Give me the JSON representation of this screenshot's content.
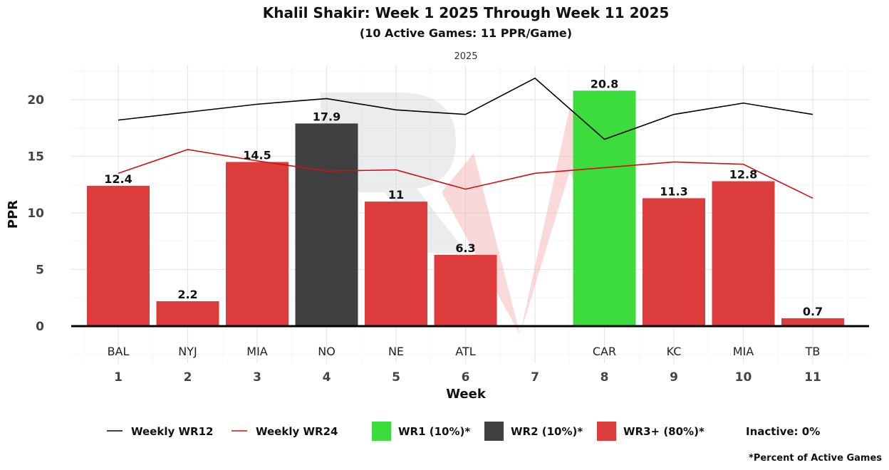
{
  "chart_data": {
    "type": "bar",
    "title": "Khalil Shakir: Week 1 2025 Through Week 11 2025",
    "subtitle": "(10 Active Games: 11 PPR/Game)",
    "facet_label": "2025",
    "xlabel": "Week",
    "ylabel": "PPR",
    "ylim": [
      -3.3,
      23
    ],
    "yticks": [
      0,
      5,
      10,
      15,
      20
    ],
    "grid": true,
    "weeks": [
      1,
      2,
      3,
      4,
      5,
      6,
      7,
      8,
      9,
      10,
      11
    ],
    "week_labels": [
      "1",
      "2",
      "3",
      "4",
      "5",
      "6",
      "7",
      "8",
      "9",
      "10",
      "11"
    ],
    "opponents": [
      "BAL",
      "NYJ",
      "MIA",
      "NO",
      "NE",
      "ATL",
      "",
      "CAR",
      "KC",
      "MIA",
      "TB"
    ],
    "bars": [
      {
        "week": 1,
        "value": 12.4,
        "label": "12.4",
        "tier": "WR3+"
      },
      {
        "week": 2,
        "value": 2.2,
        "label": "2.2",
        "tier": "WR3+"
      },
      {
        "week": 3,
        "value": 14.5,
        "label": "14.5",
        "tier": "WR3+"
      },
      {
        "week": 4,
        "value": 17.9,
        "label": "17.9",
        "tier": "WR2"
      },
      {
        "week": 5,
        "value": 11,
        "label": "11",
        "tier": "WR3+"
      },
      {
        "week": 6,
        "value": 6.3,
        "label": "6.3",
        "tier": "WR3+"
      },
      {
        "week": 8,
        "value": 20.8,
        "label": "20.8",
        "tier": "WR1"
      },
      {
        "week": 9,
        "value": 11.3,
        "label": "11.3",
        "tier": "WR3+"
      },
      {
        "week": 10,
        "value": 12.8,
        "label": "12.8",
        "tier": "WR3+"
      },
      {
        "week": 11,
        "value": 0.7,
        "label": "0.7",
        "tier": "WR3+"
      }
    ],
    "series": [
      {
        "name": "Weekly WR12",
        "color": "#000000",
        "values": [
          18.2,
          18.9,
          19.6,
          20.1,
          19.1,
          18.7,
          21.9,
          16.5,
          18.7,
          19.7,
          18.7
        ]
      },
      {
        "name": "Weekly WR24",
        "color": "#cc1111",
        "values": [
          13.5,
          15.6,
          14.6,
          13.7,
          13.8,
          12.1,
          13.5,
          14.0,
          14.5,
          14.3,
          11.3
        ]
      }
    ],
    "tier_colors": {
      "WR1": "#3ddc3d",
      "WR2": "#404040",
      "WR3+": "#dc3c3c"
    },
    "legend": {
      "placement": "bottom",
      "items": [
        {
          "label": "Weekly WR12",
          "kind": "line",
          "color": "#000000"
        },
        {
          "label": "Weekly WR24",
          "kind": "line",
          "color": "#cc1111"
        },
        {
          "label": "WR1 (10%)*",
          "kind": "box",
          "color": "#3ddc3d"
        },
        {
          "label": "WR2 (10%)*",
          "kind": "box",
          "color": "#404040"
        },
        {
          "label": "WR3+ (80%)*",
          "kind": "box",
          "color": "#dc3c3c"
        },
        {
          "label": "Inactive: 0%",
          "kind": "text"
        }
      ]
    },
    "footnote": "*Percent of Active Games"
  }
}
